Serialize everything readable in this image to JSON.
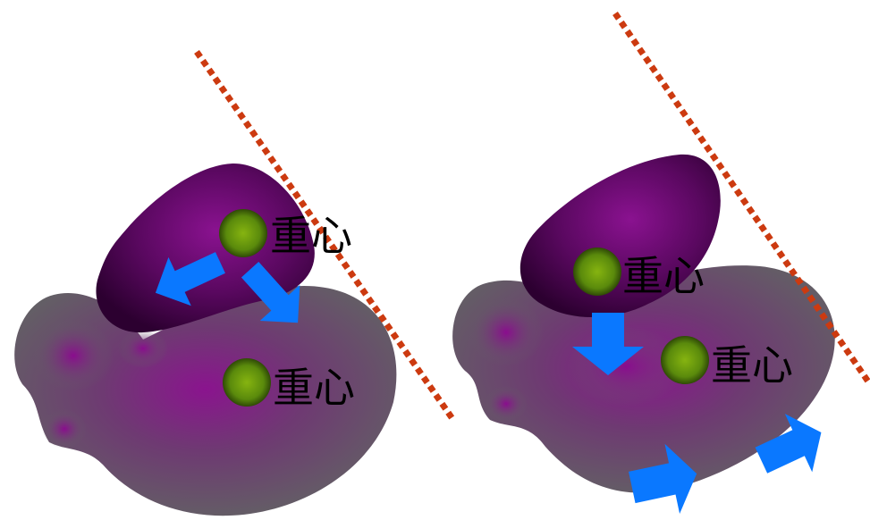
{
  "labels": {
    "left_upper": "重心",
    "left_lower": "重心",
    "right_upper": "重心",
    "right_lower": "重心"
  },
  "colors": {
    "dashed_line": "#cc3a10",
    "arrow": "#0a78ff",
    "dot_inner": "#7aa010",
    "dot_outer": "#3e5a08",
    "rock_dark": "#3b003f",
    "rock_mid": "#7e0d84",
    "ground_gray": "#626264"
  }
}
